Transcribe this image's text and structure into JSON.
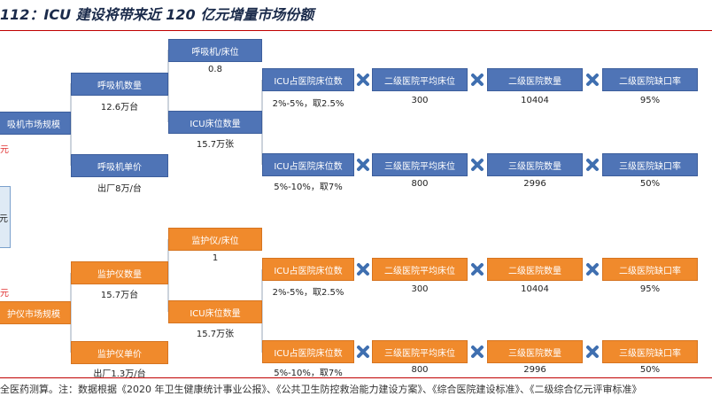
{
  "title": "112：ICU 建设将带来近 120 亿元增量市场份额",
  "footer": "全医药测算。注：数据根据《2020 年卫生健康统计事业公报》、《公共卫生防控救治能力建设方案》、《综合医院建设标准》、《二级综合亿元评审标准》",
  "colors": {
    "blue": "#4f74b6",
    "orange": "#f08a2c",
    "cross": "#3f6fb0",
    "red": "#e03030"
  },
  "left_partial": {
    "top_red": "元",
    "mid": "元",
    "bottom_red": "元"
  },
  "ventilator": {
    "market": "吸机市场规模",
    "count": "呼吸机数量",
    "count_value": "12.6万台",
    "per_bed": "呼吸机/床位",
    "per_bed_value": "0.8",
    "icu_beds": "ICU床位数量",
    "icu_beds_value": "15.7万张",
    "price": "呼吸机单价",
    "price_value": "出厂8万/台",
    "row1": {
      "share": "ICU占医院床位数",
      "share_value": "2%-5%，取2.5%",
      "avg_beds": "二级医院平均床位",
      "avg_beds_value": "300",
      "hospitals": "二级医院数量",
      "hospitals_value": "10404",
      "gap": "二级医院缺口率",
      "gap_value": "95%"
    },
    "row2": {
      "share": "ICU占医院床位数",
      "share_value": "5%-10%，取7%",
      "avg_beds": "三级医院平均床位",
      "avg_beds_value": "800",
      "hospitals": "三级医院数量",
      "hospitals_value": "2996",
      "gap": "三级医院缺口率",
      "gap_value": "50%"
    }
  },
  "monitor": {
    "market": "护仪市场规模",
    "count": "监护仪数量",
    "count_value": "15.7万台",
    "per_bed": "监护仪/床位",
    "per_bed_value": "1",
    "icu_beds": "ICU床位数量",
    "icu_beds_value": "15.7万张",
    "price": "监护仪单价",
    "price_value": "出厂1.3万/台",
    "row1": {
      "share": "ICU占医院床位数",
      "share_value": "2%-5%，取2.5%",
      "avg_beds": "二级医院平均床位",
      "avg_beds_value": "300",
      "hospitals": "二级医院数量",
      "hospitals_value": "10404",
      "gap": "二级医院缺口率",
      "gap_value": "95%"
    },
    "row2": {
      "share": "ICU占医院床位数",
      "share_value": "5%-10%，取7%",
      "avg_beds": "三级医院平均床位",
      "avg_beds_value": "800",
      "hospitals": "三级医院数量",
      "hospitals_value": "2996",
      "gap": "三级医院缺口率",
      "gap_value": "50%"
    }
  }
}
